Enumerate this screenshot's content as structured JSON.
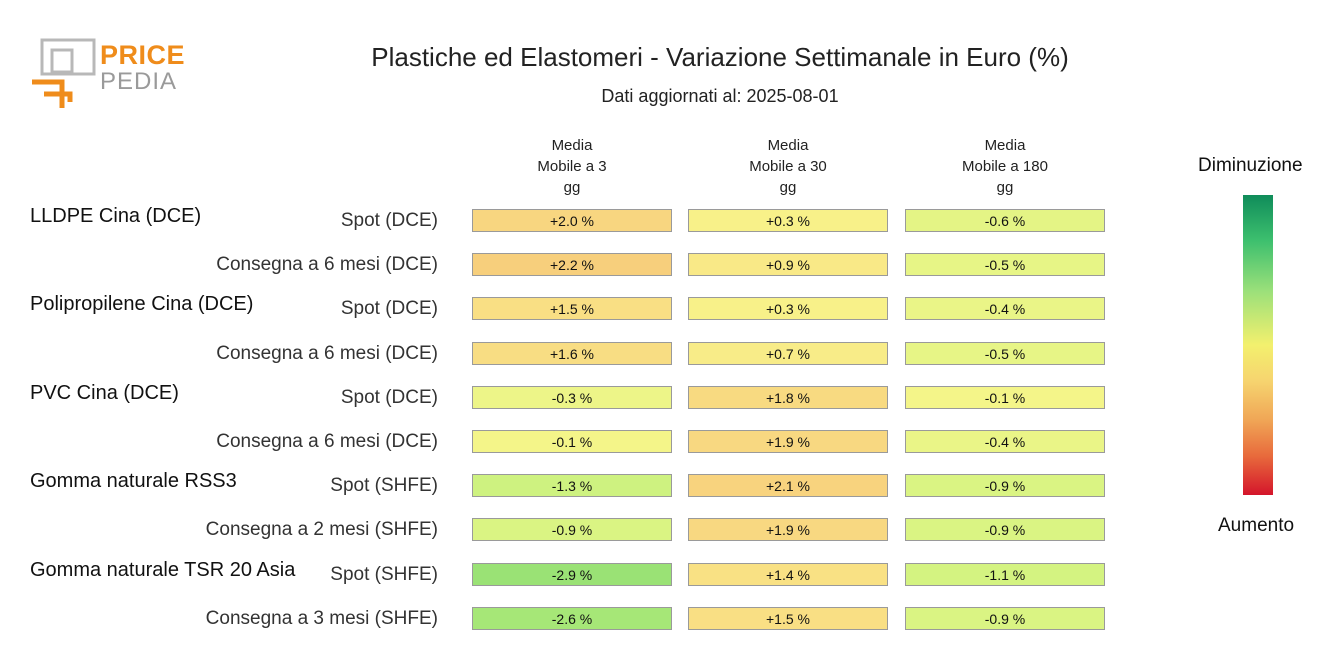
{
  "logo": {
    "line1": "PRICE",
    "line2": "PEDIA"
  },
  "title": "Plastiche ed Elastomeri - Variazione Settimanale in Euro (%)",
  "subtitle": "Dati aggiornati al: 2025-08-01",
  "legend": {
    "top": "Diminuzione",
    "bottom": "Aumento"
  },
  "chart_data": {
    "type": "table",
    "title": "Plastiche ed Elastomeri - Variazione Settimanale in Euro (%)",
    "columns": [
      {
        "line1": "Media",
        "line2": "Mobile a 3",
        "line3": "gg"
      },
      {
        "line1": "Media",
        "line2": "Mobile a 30",
        "line3": "gg"
      },
      {
        "line1": "Media",
        "line2": "Mobile a 180",
        "line3": "gg"
      }
    ],
    "groups": [
      {
        "name": "LLDPE Cina (DCE)",
        "rows": [
          {
            "label": "Spot (DCE)",
            "values": [
              2.0,
              0.3,
              -0.6
            ],
            "texts": [
              "+2.0 %",
              "+0.3 %",
              "-0.6 %"
            ]
          },
          {
            "label": "Consegna a 6 mesi (DCE)",
            "values": [
              2.2,
              0.9,
              -0.5
            ],
            "texts": [
              "+2.2 %",
              "+0.9 %",
              "-0.5 %"
            ]
          }
        ]
      },
      {
        "name": "Polipropilene Cina (DCE)",
        "rows": [
          {
            "label": "Spot (DCE)",
            "values": [
              1.5,
              0.3,
              -0.4
            ],
            "texts": [
              "+1.5 %",
              "+0.3 %",
              "-0.4 %"
            ]
          },
          {
            "label": "Consegna a 6 mesi (DCE)",
            "values": [
              1.6,
              0.7,
              -0.5
            ],
            "texts": [
              "+1.6 %",
              "+0.7 %",
              "-0.5 %"
            ]
          }
        ]
      },
      {
        "name": "PVC Cina (DCE)",
        "rows": [
          {
            "label": "Spot (DCE)",
            "values": [
              -0.3,
              1.8,
              -0.1
            ],
            "texts": [
              "-0.3 %",
              "+1.8 %",
              "-0.1 %"
            ]
          },
          {
            "label": "Consegna a 6 mesi (DCE)",
            "values": [
              -0.1,
              1.9,
              -0.4
            ],
            "texts": [
              "-0.1 %",
              "+1.9 %",
              "-0.4 %"
            ]
          }
        ]
      },
      {
        "name": "Gomma naturale RSS3",
        "rows": [
          {
            "label": "Spot (SHFE)",
            "values": [
              -1.3,
              2.1,
              -0.9
            ],
            "texts": [
              "-1.3 %",
              "+2.1 %",
              "-0.9 %"
            ]
          },
          {
            "label": "Consegna a 2 mesi (SHFE)",
            "values": [
              -0.9,
              1.9,
              -0.9
            ],
            "texts": [
              "-0.9 %",
              "+1.9 %",
              "-0.9 %"
            ]
          }
        ]
      },
      {
        "name": "Gomma naturale TSR 20 Asia",
        "rows": [
          {
            "label": "Spot (SHFE)",
            "values": [
              -2.9,
              1.4,
              -1.1
            ],
            "texts": [
              "-2.9 %",
              "+1.4 %",
              "-1.1 %"
            ]
          },
          {
            "label": "Consegna a 3 mesi (SHFE)",
            "values": [
              -2.6,
              1.5,
              -0.9
            ],
            "texts": [
              "-2.6 %",
              "+1.5 %",
              "-0.9 %"
            ]
          }
        ]
      }
    ]
  }
}
